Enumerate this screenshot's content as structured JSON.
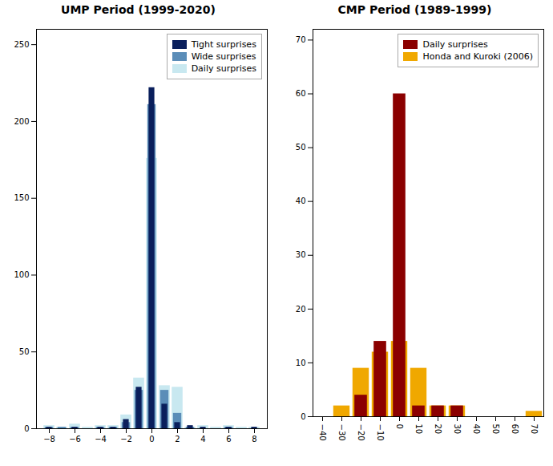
{
  "chart_data": [
    {
      "type": "bar",
      "title": "UMP Period (1999-2020)",
      "x": [
        -8,
        -7,
        -6,
        -5,
        -4,
        -3,
        -2,
        -1,
        0,
        1,
        2,
        3,
        4,
        5,
        6,
        7,
        8
      ],
      "series": [
        {
          "name": "Tight surprises",
          "color": "#0a1f5c",
          "values": [
            1,
            0,
            1,
            0,
            1,
            1,
            6,
            27,
            222,
            16,
            4,
            2,
            1,
            0,
            1,
            0,
            1
          ]
        },
        {
          "name": "Wide surprises",
          "color": "#5b8db8",
          "values": [
            1,
            1,
            1,
            0,
            1,
            1,
            4,
            25,
            211,
            25,
            10,
            1,
            0,
            0,
            1,
            0,
            0
          ]
        },
        {
          "name": "Daily surprises",
          "color": "#c8e8f0",
          "values": [
            2,
            1,
            3,
            1,
            2,
            2,
            9,
            33,
            176,
            28,
            27,
            1,
            2,
            1,
            2,
            1,
            1
          ]
        }
      ],
      "xlim": [
        -9,
        9
      ],
      "xticks": [
        -8,
        -6,
        -4,
        -2,
        0,
        2,
        4,
        6,
        8
      ],
      "ylim": [
        0,
        260
      ],
      "yticks": [
        0,
        50,
        100,
        150,
        200,
        250
      ],
      "legend": "upper right"
    },
    {
      "type": "bar",
      "title": "CMP Period (1989-1999)",
      "x": [
        -40,
        -30,
        -20,
        -10,
        0,
        10,
        20,
        30,
        40,
        50,
        60,
        70
      ],
      "series": [
        {
          "name": "Daily surprises",
          "color": "#8b0000",
          "values": [
            0,
            0,
            4,
            14,
            60,
            2,
            2,
            2,
            0,
            0,
            0,
            0
          ]
        },
        {
          "name": "Honda and Kuroki (2006)",
          "color": "#f0a800",
          "values": [
            0,
            2,
            9,
            12,
            14,
            9,
            2,
            2,
            0,
            0,
            0,
            1
          ]
        }
      ],
      "xlim": [
        -45,
        75
      ],
      "xticks": [
        -40,
        -30,
        -20,
        -10,
        0,
        10,
        20,
        30,
        40,
        50,
        60,
        70
      ],
      "ylim": [
        0,
        72
      ],
      "yticks": [
        0,
        10,
        20,
        30,
        40,
        50,
        60,
        70
      ],
      "legend": "upper right"
    }
  ]
}
